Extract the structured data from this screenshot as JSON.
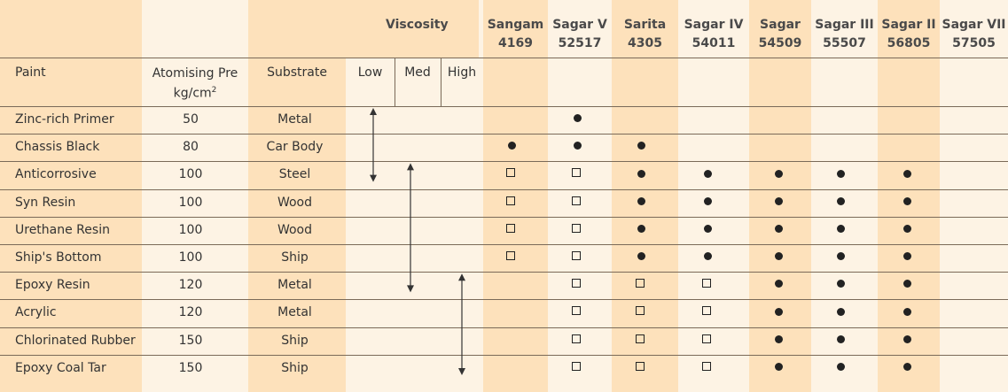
{
  "header": {
    "viscosity": "Viscosity",
    "paint": "Paint",
    "pressure_line1": "Atomising Pre",
    "pressure_line2": "kg/cm",
    "pressure_sup": "2",
    "substrate": "Substrate",
    "low": "Low",
    "med": "Med",
    "high": "High"
  },
  "products": [
    {
      "name": "Sangam",
      "model": "4169",
      "highlight": true
    },
    {
      "name": "Sagar V",
      "model": "52517",
      "highlight": false
    },
    {
      "name": "Sarita",
      "model": "4305",
      "highlight": true
    },
    {
      "name": "Sagar IV",
      "model": "54011",
      "highlight": false
    },
    {
      "name": "Sagar",
      "model": "54509",
      "highlight": true
    },
    {
      "name": "Sagar III",
      "model": "55507",
      "highlight": false
    },
    {
      "name": "Sagar II",
      "model": "56805",
      "highlight": true
    },
    {
      "name": "Sagar VII",
      "model": "57505",
      "highlight": false
    }
  ],
  "rows": [
    {
      "paint": "Zinc-rich Primer",
      "pressure": "50",
      "substrate": "Metal",
      "marks": [
        "",
        "dot",
        "",
        "",
        "",
        "",
        "",
        ""
      ]
    },
    {
      "paint": "Chassis Black",
      "pressure": "80",
      "substrate": "Car Body",
      "marks": [
        "dot",
        "dot",
        "dot",
        "",
        "",
        "",
        "",
        ""
      ]
    },
    {
      "paint": "Anticorrosive",
      "pressure": "100",
      "substrate": "Steel",
      "marks": [
        "square",
        "square",
        "dot",
        "dot",
        "dot",
        "dot",
        "dot",
        ""
      ]
    },
    {
      "paint": "Syn Resin",
      "pressure": "100",
      "substrate": "Wood",
      "marks": [
        "square",
        "square",
        "dot",
        "dot",
        "dot",
        "dot",
        "dot",
        ""
      ]
    },
    {
      "paint": "Urethane Resin",
      "pressure": "100",
      "substrate": "Wood",
      "marks": [
        "square",
        "square",
        "dot",
        "dot",
        "dot",
        "dot",
        "dot",
        ""
      ]
    },
    {
      "paint": "Ship's Bottom",
      "pressure": "100",
      "substrate": "Ship",
      "marks": [
        "square",
        "square",
        "dot",
        "dot",
        "dot",
        "dot",
        "dot",
        ""
      ]
    },
    {
      "paint": "Epoxy Resin",
      "pressure": "120",
      "substrate": "Metal",
      "marks": [
        "",
        "square",
        "square",
        "square",
        "dot",
        "dot",
        "dot",
        ""
      ]
    },
    {
      "paint": "Acrylic",
      "pressure": "120",
      "substrate": "Metal",
      "marks": [
        "",
        "square",
        "square",
        "square",
        "dot",
        "dot",
        "dot",
        ""
      ]
    },
    {
      "paint": "Chlorinated Rubber",
      "pressure": "150",
      "substrate": "Ship",
      "marks": [
        "",
        "square",
        "square",
        "square",
        "dot",
        "dot",
        "dot",
        ""
      ]
    },
    {
      "paint": "Epoxy Coal Tar",
      "pressure": "150",
      "substrate": "Ship",
      "marks": [
        "",
        "square",
        "square",
        "square",
        "dot",
        "dot",
        "dot",
        ""
      ]
    }
  ],
  "viscosity_ranges": [
    {
      "level": "low",
      "from_row": 0,
      "to_row": 2
    },
    {
      "level": "med",
      "from_row": 2,
      "to_row": 6
    },
    {
      "level": "high",
      "from_row": 6,
      "to_row": 9
    }
  ],
  "colors": {
    "background": "#fdf3e4",
    "highlight": "#fde1bb",
    "rule": "#7a6a58",
    "mark": "#222222"
  }
}
